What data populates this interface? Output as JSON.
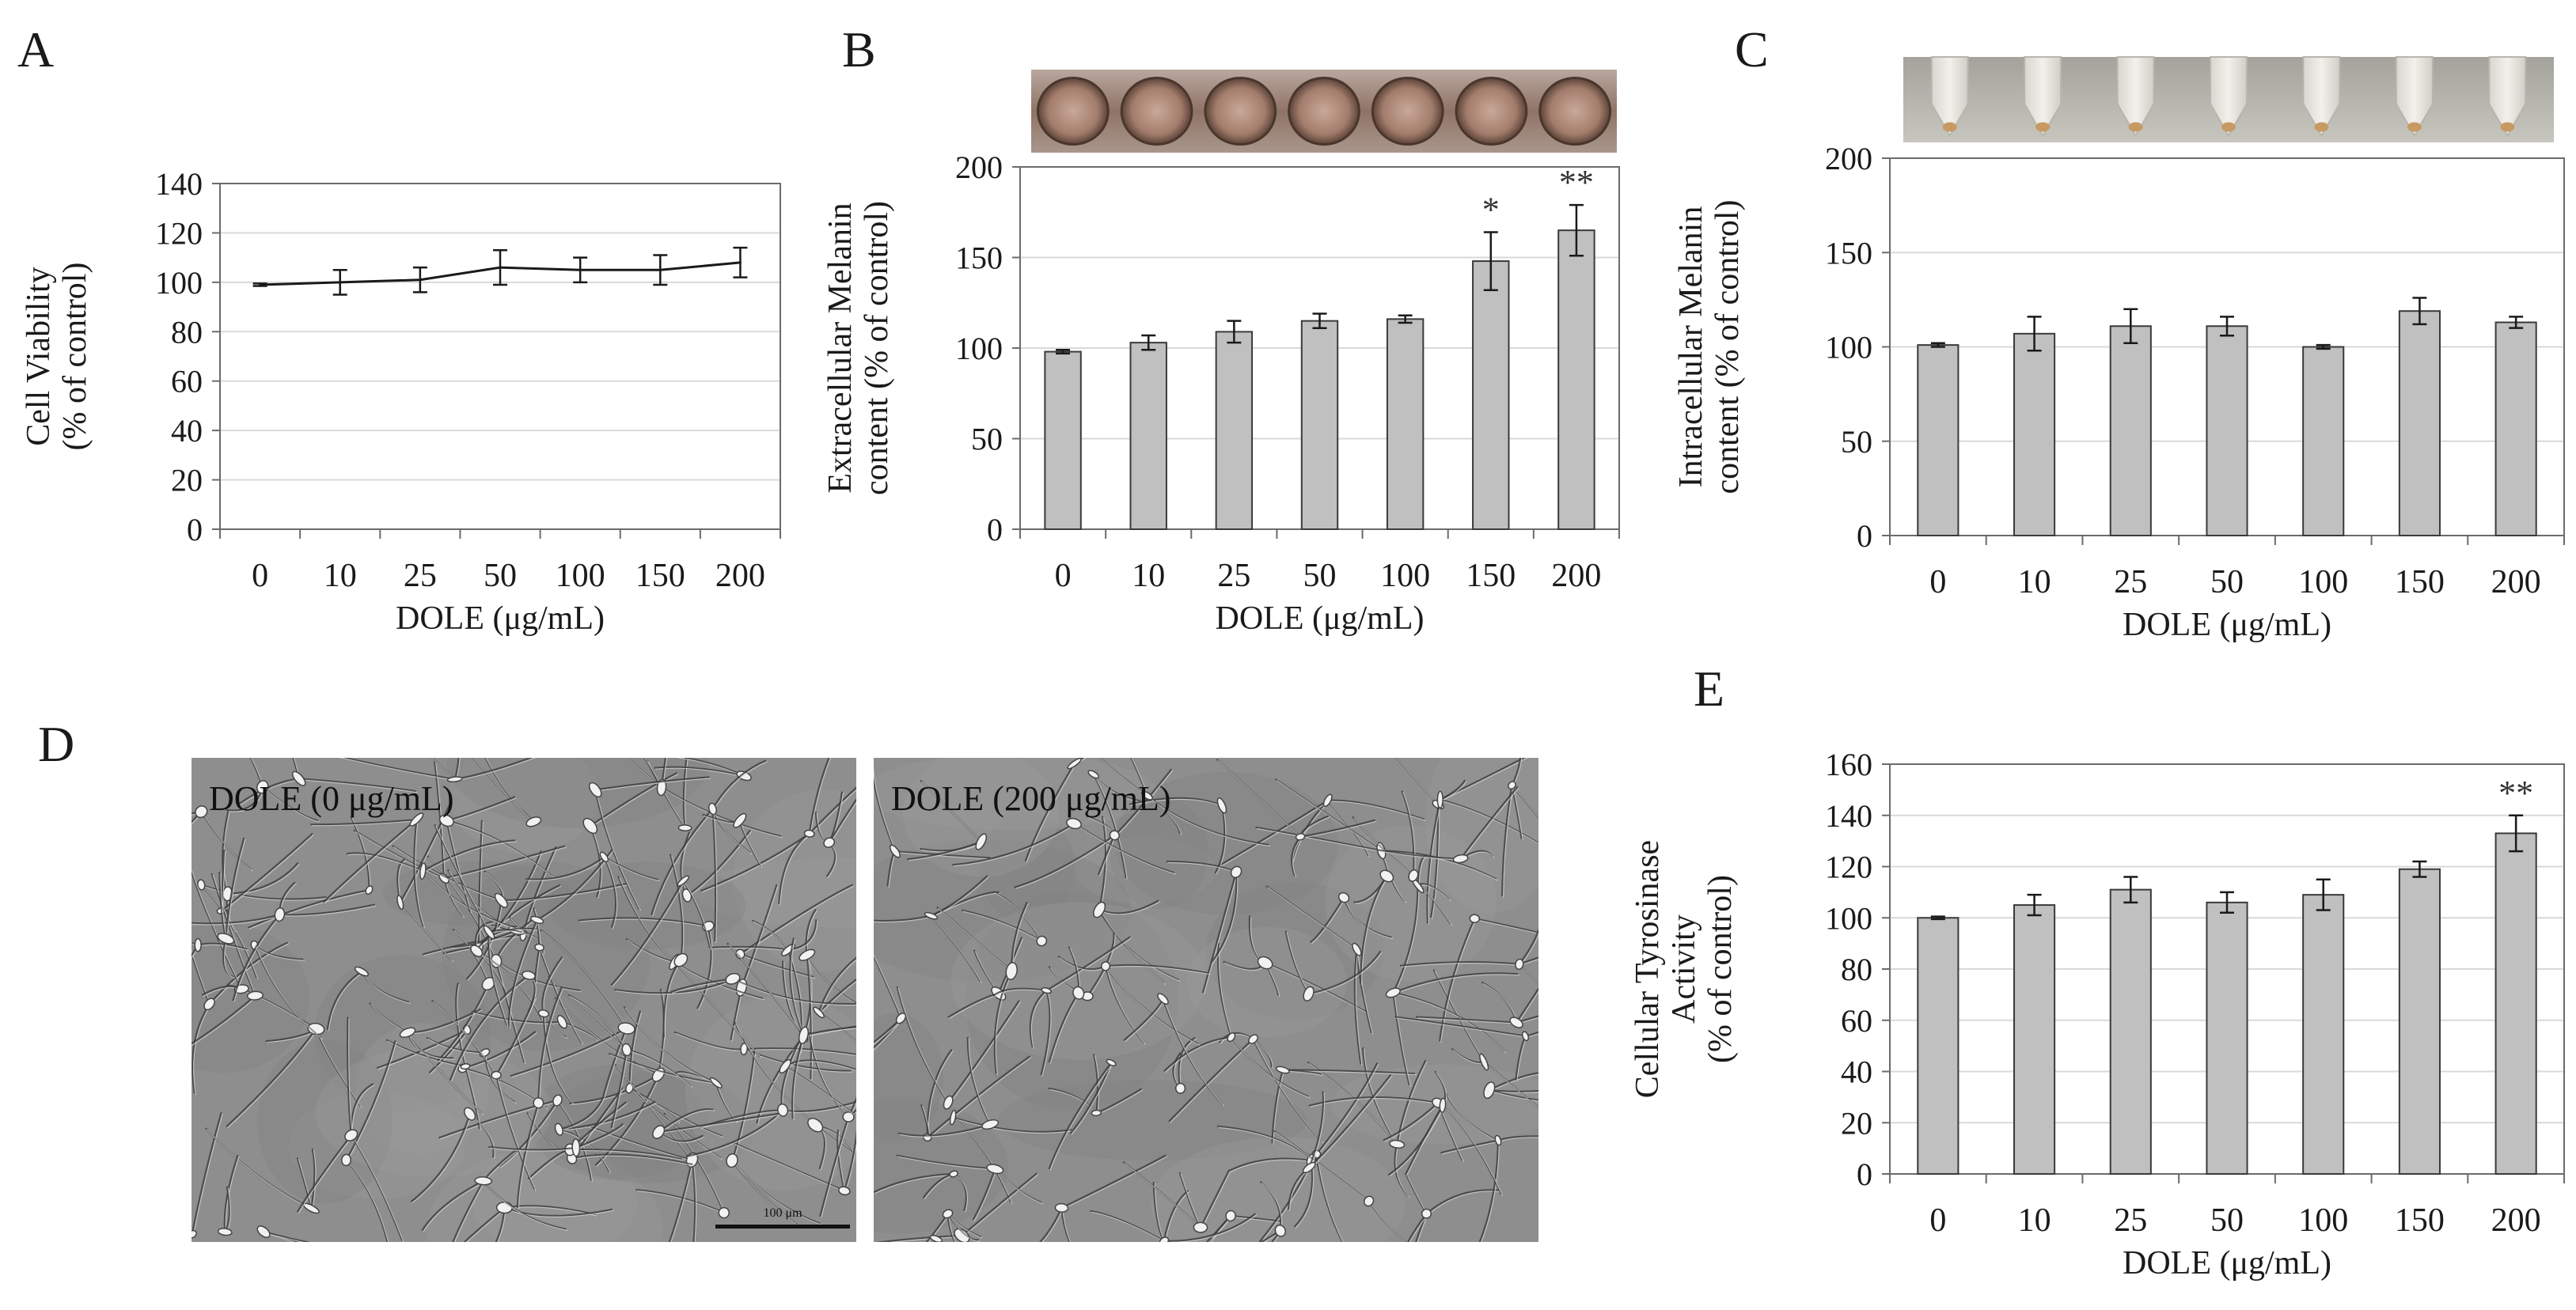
{
  "figure": {
    "panel_letters": {
      "A": "A",
      "B": "B",
      "C": "C",
      "D": "D",
      "E": "E"
    },
    "micrographs": {
      "left_label": "DOLE (0 μg/mL)",
      "right_label": "DOLE (200 μg/mL)",
      "scale_bar_label": "100 μm"
    }
  },
  "chart_data": [
    {
      "panel": "A",
      "type": "line",
      "categories": [
        "0",
        "10",
        "25",
        "50",
        "100",
        "150",
        "200"
      ],
      "series": [
        {
          "values": [
            99,
            100,
            101,
            106,
            105,
            105,
            108
          ],
          "errors": [
            0.5,
            5,
            5,
            7,
            5,
            6,
            6
          ]
        }
      ],
      "xlabel": "DOLE (μg/mL)",
      "ylabel": [
        "Cell Viability",
        "(% of control)"
      ],
      "ylim": [
        0,
        140
      ],
      "yticks": [
        0,
        20,
        40,
        60,
        80,
        100,
        120,
        140
      ],
      "grid": true,
      "annotations": []
    },
    {
      "panel": "B",
      "type": "bar",
      "categories": [
        "0",
        "10",
        "25",
        "50",
        "100",
        "150",
        "200"
      ],
      "series": [
        {
          "values": [
            98,
            103,
            109,
            115,
            116,
            148,
            165
          ],
          "errors": [
            1,
            4,
            6,
            4,
            2,
            16,
            14
          ]
        }
      ],
      "xlabel": "DOLE (μg/mL)",
      "ylabel": [
        "Extracellular  Melanin",
        "content (% of control)"
      ],
      "ylim": [
        0,
        200
      ],
      "yticks": [
        0,
        50,
        100,
        150,
        200
      ],
      "grid": true,
      "annotations": [
        "",
        "",
        "",
        "",
        "",
        "*",
        "**"
      ],
      "photo": "well-plate",
      "color": "#c0c0c0"
    },
    {
      "panel": "C",
      "type": "bar",
      "categories": [
        "0",
        "10",
        "25",
        "50",
        "100",
        "150",
        "200"
      ],
      "series": [
        {
          "values": [
            101,
            107,
            111,
            111,
            100,
            119,
            113
          ],
          "errors": [
            1,
            9,
            9,
            5,
            1,
            7,
            3
          ]
        }
      ],
      "xlabel": "DOLE (μg/mL)",
      "ylabel": [
        "Intracellular  Melanin",
        "content (% of control)"
      ],
      "ylim": [
        0,
        200
      ],
      "yticks": [
        0,
        50,
        100,
        150,
        200
      ],
      "grid": true,
      "annotations": [],
      "photo": "tubes",
      "color": "#c0c0c0"
    },
    {
      "panel": "E",
      "type": "bar",
      "categories": [
        "0",
        "10",
        "25",
        "50",
        "100",
        "150",
        "200"
      ],
      "series": [
        {
          "values": [
            100,
            105,
            111,
            106,
            109,
            119,
            133
          ],
          "errors": [
            0.5,
            4,
            5,
            4,
            6,
            3,
            7
          ]
        }
      ],
      "xlabel": "DOLE (μg/mL)",
      "ylabel": [
        "Cellular Tyrosinase",
        "Activity",
        "(% of control)"
      ],
      "ylim": [
        0,
        160
      ],
      "yticks": [
        0,
        20,
        40,
        60,
        80,
        100,
        120,
        140,
        160
      ],
      "grid": true,
      "annotations": [
        "",
        "",
        "",
        "",
        "",
        "",
        "**"
      ],
      "color": "#c0c0c0"
    }
  ]
}
